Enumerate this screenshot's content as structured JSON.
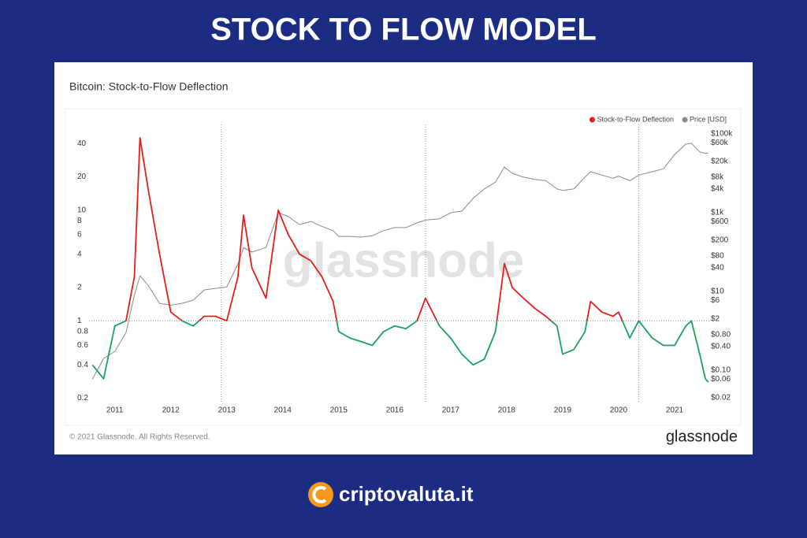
{
  "header": "STOCK TO FLOW MODEL",
  "watermark": "glassnode",
  "footer": {
    "copyright": "© 2021 Glassnode. All Rights Reserved.",
    "brand": "glassnode"
  },
  "site": "criptovaluta.it",
  "chart_data": {
    "type": "line",
    "title": "Bitcoin: Stock-to-Flow Deflection",
    "log_scale": true,
    "legend": "top-right",
    "reference_line": 1,
    "x": [
      2010.6,
      2010.8,
      2011.0,
      2011.2,
      2011.35,
      2011.45,
      2011.6,
      2011.8,
      2012.0,
      2012.2,
      2012.4,
      2012.6,
      2012.8,
      2013.0,
      2013.2,
      2013.3,
      2013.45,
      2013.7,
      2013.92,
      2014.1,
      2014.3,
      2014.5,
      2014.7,
      2014.9,
      2015.0,
      2015.2,
      2015.4,
      2015.6,
      2015.8,
      2016.0,
      2016.2,
      2016.4,
      2016.55,
      2016.8,
      2017.0,
      2017.2,
      2017.4,
      2017.6,
      2017.8,
      2017.96,
      2018.1,
      2018.3,
      2018.5,
      2018.7,
      2018.9,
      2019.0,
      2019.2,
      2019.4,
      2019.5,
      2019.7,
      2019.9,
      2020.0,
      2020.2,
      2020.36,
      2020.6,
      2020.8,
      2021.0,
      2021.2,
      2021.3,
      2021.45,
      2021.55,
      2021.6
    ],
    "series": [
      {
        "name": "Stock-to-Flow Deflection",
        "color": "#e0201b",
        "below_color": "#1aa35f",
        "values": [
          0.4,
          0.3,
          0.9,
          1.0,
          2.5,
          45,
          15,
          4,
          1.2,
          1.0,
          0.9,
          1.1,
          1.1,
          1.0,
          2.5,
          9,
          3,
          1.6,
          10,
          6,
          4,
          3.5,
          2.5,
          1.5,
          0.8,
          0.7,
          0.65,
          0.6,
          0.8,
          0.9,
          0.85,
          1.0,
          1.6,
          0.9,
          0.7,
          0.5,
          0.4,
          0.45,
          0.8,
          3.3,
          2.0,
          1.6,
          1.3,
          1.1,
          0.9,
          0.5,
          0.55,
          0.8,
          1.5,
          1.2,
          1.1,
          1.2,
          0.7,
          1.0,
          0.7,
          0.6,
          0.6,
          0.9,
          1.0,
          0.5,
          0.3,
          0.28
        ]
      },
      {
        "name": "Price [USD]",
        "color": "#8a8a8a",
        "axis": "y2",
        "values": [
          0.06,
          0.2,
          0.3,
          0.9,
          8,
          25,
          14,
          5,
          4.5,
          5,
          6,
          11,
          12,
          13,
          50,
          130,
          100,
          130,
          1000,
          800,
          500,
          600,
          450,
          350,
          250,
          250,
          240,
          260,
          350,
          420,
          420,
          550,
          650,
          700,
          1000,
          1100,
          2300,
          4000,
          6000,
          14500,
          10000,
          8000,
          7000,
          6500,
          4000,
          3700,
          4000,
          8000,
          11000,
          9000,
          7500,
          8500,
          6500,
          9000,
          11000,
          13000,
          30000,
          55000,
          58000,
          35000,
          32000,
          33000
        ]
      }
    ],
    "halvings": [
      2012.9,
      2016.55,
      2020.36
    ],
    "xlim": [
      2010.54,
      2021.62
    ],
    "xticks": [
      2011,
      2012,
      2013,
      2014,
      2015,
      2016,
      2017,
      2018,
      2019,
      2020,
      2021
    ],
    "ylim": [
      0.18,
      53
    ],
    "yticks": [
      0.2,
      0.4,
      0.6,
      0.8,
      1,
      2,
      4,
      6,
      8,
      10,
      20,
      40
    ],
    "y2lim": [
      0.0145,
      126000
    ],
    "y2ticks": [
      {
        "value": 0.02,
        "label": "$0.02"
      },
      {
        "value": 0.06,
        "label": "$0.06"
      },
      {
        "value": 0.1,
        "label": "$0.10"
      },
      {
        "value": 0.4,
        "label": "$0.40"
      },
      {
        "value": 0.8,
        "label": "$0.80"
      },
      {
        "value": 2,
        "label": "$2"
      },
      {
        "value": 6,
        "label": "$6"
      },
      {
        "value": 10,
        "label": "$10"
      },
      {
        "value": 40,
        "label": "$40"
      },
      {
        "value": 80,
        "label": "$80"
      },
      {
        "value": 200,
        "label": "$200"
      },
      {
        "value": 600,
        "label": "$600"
      },
      {
        "value": 1000,
        "label": "$1k"
      },
      {
        "value": 4000,
        "label": "$4k"
      },
      {
        "value": 8000,
        "label": "$8k"
      },
      {
        "value": 20000,
        "label": "$20k"
      },
      {
        "value": 60000,
        "label": "$60k"
      },
      {
        "value": 100000,
        "label": "$100k"
      }
    ]
  }
}
